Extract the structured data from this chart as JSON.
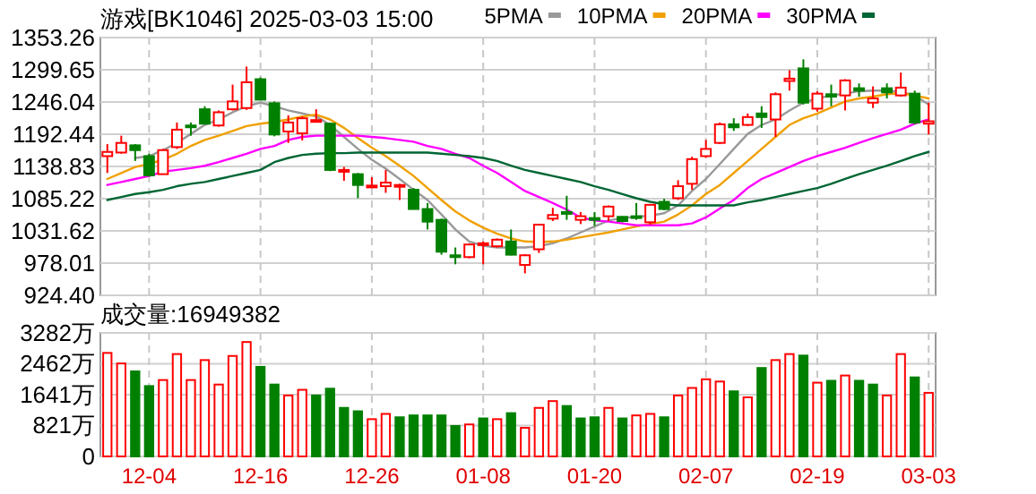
{
  "chart_data": [
    {
      "type": "candlestick",
      "title": "游戏[BK1046] 2025-03-03 15:00",
      "tick_labels": "y",
      "grid": true,
      "legend": "top right",
      "categories": [
        null,
        null,
        null,
        null,
        null,
        null,
        null,
        null,
        null,
        null,
        null,
        null,
        null,
        null,
        null,
        null,
        null,
        null,
        null,
        null,
        null,
        null,
        null,
        null,
        null,
        null,
        null,
        null,
        null,
        null,
        null,
        null,
        null,
        null,
        null,
        null,
        null,
        null,
        null,
        null,
        null,
        null,
        null,
        null,
        null,
        null,
        null,
        null,
        null,
        null,
        null,
        null,
        null,
        null,
        null,
        null,
        null,
        null,
        null,
        null
      ],
      "ylim": [
        924.4,
        1353.26
      ],
      "yticks": [
        {
          "value": 924.4,
          "label": "924.40"
        },
        978.01,
        1031.62,
        1085.22,
        1138.83,
        1192.44,
        1246.04,
        1299.65,
        1353.26
      ],
      "ohlc": [
        [
          1156,
          1176,
          1128,
          1163
        ],
        [
          1162,
          1190,
          1160,
          1178
        ],
        [
          1174,
          1176,
          1148,
          1166
        ],
        [
          1156,
          1160,
          1122,
          1124
        ],
        [
          1126,
          1168,
          1126,
          1166
        ],
        [
          1171,
          1212,
          1168,
          1200
        ],
        [
          1207,
          1212,
          1190,
          1205
        ],
        [
          1234,
          1239,
          1209,
          1210
        ],
        [
          1207,
          1232,
          1205,
          1229
        ],
        [
          1234,
          1275,
          1232,
          1247
        ],
        [
          1236,
          1305,
          1233,
          1279
        ],
        [
          1284,
          1287,
          1249,
          1250
        ],
        [
          1244,
          1247,
          1189,
          1192
        ],
        [
          1197,
          1224,
          1178,
          1212
        ],
        [
          1194,
          1222,
          1182,
          1219
        ],
        [
          1214,
          1234,
          1212,
          1216
        ],
        [
          1210,
          1212,
          1131,
          1133
        ],
        [
          1131,
          1138,
          1115,
          1133
        ],
        [
          1126,
          1128,
          1086,
          1108
        ],
        [
          1106,
          1121,
          1103,
          1107
        ],
        [
          1106,
          1133,
          1095,
          1112
        ],
        [
          1106,
          1110,
          1083,
          1108
        ],
        [
          1100,
          1103,
          1068,
          1068
        ],
        [
          1068,
          1078,
          1034,
          1047
        ],
        [
          1050,
          1052,
          992,
          997
        ],
        [
          991,
          1004,
          976,
          989
        ],
        [
          988,
          1011,
          986,
          1009
        ],
        [
          1009,
          1014,
          976,
          1011
        ],
        [
          1006,
          1019,
          1004,
          1017
        ],
        [
          1014,
          1034,
          991,
          992
        ],
        [
          975,
          993,
          961,
          991
        ],
        [
          1001,
          1042,
          995,
          1042
        ],
        [
          1052,
          1070,
          1048,
          1058
        ],
        [
          1063,
          1090,
          1050,
          1060
        ],
        [
          1050,
          1063,
          1043,
          1056
        ],
        [
          1053,
          1063,
          1040,
          1050
        ],
        [
          1056,
          1074,
          1048,
          1072
        ],
        [
          1055,
          1056,
          1046,
          1048
        ],
        [
          1056,
          1078,
          1050,
          1053
        ],
        [
          1046,
          1075,
          1042,
          1075
        ],
        [
          1080,
          1085,
          1066,
          1068
        ],
        [
          1086,
          1116,
          1083,
          1106
        ],
        [
          1110,
          1155,
          1100,
          1151
        ],
        [
          1156,
          1183,
          1153,
          1168
        ],
        [
          1178,
          1212,
          1176,
          1209
        ],
        [
          1209,
          1219,
          1198,
          1204
        ],
        [
          1208,
          1227,
          1206,
          1221
        ],
        [
          1227,
          1239,
          1203,
          1221
        ],
        [
          1217,
          1262,
          1188,
          1259
        ],
        [
          1281,
          1299,
          1265,
          1285
        ],
        [
          1302,
          1317,
          1242,
          1245
        ],
        [
          1235,
          1264,
          1230,
          1260
        ],
        [
          1259,
          1275,
          1239,
          1255
        ],
        [
          1257,
          1284,
          1232,
          1282
        ],
        [
          1269,
          1277,
          1255,
          1265
        ],
        [
          1245,
          1272,
          1236,
          1252
        ],
        [
          1269,
          1277,
          1252,
          1262
        ],
        [
          1257,
          1295,
          1255,
          1270
        ],
        [
          1260,
          1265,
          1209,
          1212
        ],
        [
          1210,
          1245,
          1192,
          1214
        ]
      ],
      "colors": [
        "#ff0000",
        "#ff0000",
        "#008000",
        "#008000",
        "#ff0000",
        "#ff0000",
        "#008000",
        "#008000",
        "#ff0000",
        "#ff0000",
        "#ff0000",
        "#008000",
        "#008000",
        "#ff0000",
        "#ff0000",
        "#ff0000",
        "#008000",
        "#ff0000",
        "#008000",
        "#ff0000",
        "#ff0000",
        "#ff0000",
        "#008000",
        "#008000",
        "#008000",
        "#008000",
        "#ff0000",
        "#ff0000",
        "#ff0000",
        "#008000",
        "#ff0000",
        "#ff0000",
        "#ff0000",
        "#008000",
        "#ff0000",
        "#008000",
        "#ff0000",
        "#008000",
        "#008000",
        "#ff0000",
        "#008000",
        "#ff0000",
        "#ff0000",
        "#ff0000",
        "#ff0000",
        "#008000",
        "#ff0000",
        "#008000",
        "#ff0000",
        "#ff0000",
        "#008000",
        "#ff0000",
        "#008000",
        "#ff0000",
        "#008000",
        "#ff0000",
        "#008000",
        "#ff0000",
        "#008000",
        "#ff0000"
      ],
      "series": [
        {
          "type": "line",
          "name": "5PMA",
          "color": "#999999",
          "values": [
            null,
            null,
            1153,
            1156,
            1166,
            1178,
            1193,
            1208,
            1217,
            1229,
            1239,
            1245,
            1239,
            1232,
            1227,
            1222,
            1208,
            1188,
            1168,
            1150,
            1135,
            1118,
            1100,
            1083,
            1059,
            1034,
            1014,
            1007,
            1004,
            1004,
            1004,
            1006,
            1011,
            1019,
            1029,
            1039,
            1049,
            1053,
            1055,
            1057,
            1061,
            1074,
            1098,
            1118,
            1143,
            1168,
            1193,
            1208,
            1217,
            1232,
            1245,
            1252,
            1257,
            1260,
            1264,
            1265,
            1265,
            1263,
            1257,
            1242
          ]
        },
        {
          "type": "line",
          "name": "10PMA",
          "color": "#f0a000",
          "values": [
            1118,
            1128,
            1138,
            1143,
            1150,
            1160,
            1173,
            1183,
            1190,
            1198,
            1206,
            1210,
            1213,
            1217,
            1222,
            1225,
            1217,
            1203,
            1186,
            1170,
            1156,
            1140,
            1123,
            1103,
            1083,
            1064,
            1049,
            1037,
            1027,
            1019,
            1014,
            1013,
            1014,
            1017,
            1021,
            1025,
            1029,
            1034,
            1039,
            1043,
            1047,
            1059,
            1074,
            1093,
            1108,
            1128,
            1148,
            1168,
            1188,
            1208,
            1219,
            1227,
            1237,
            1247,
            1252,
            1255,
            1259,
            1261,
            1257,
            1252
          ]
        },
        {
          "type": "line",
          "name": "20PMA",
          "color": "#ff00ff",
          "values": [
            1108,
            1113,
            1118,
            1123,
            1130,
            1133,
            1136,
            1140,
            1146,
            1153,
            1160,
            1168,
            1173,
            1183,
            1188,
            1190,
            1190,
            1190,
            1190,
            1188,
            1186,
            1183,
            1180,
            1173,
            1168,
            1160,
            1153,
            1140,
            1128,
            1113,
            1098,
            1088,
            1078,
            1067,
            1054,
            1049,
            1047,
            1044,
            1041,
            1041,
            1041,
            1041,
            1044,
            1054,
            1069,
            1083,
            1103,
            1118,
            1128,
            1138,
            1148,
            1156,
            1163,
            1170,
            1178,
            1186,
            1193,
            1200,
            1210,
            1217
          ]
        },
        {
          "type": "line",
          "name": "30PMA",
          "color": "#006633",
          "values": [
            1083,
            1088,
            1093,
            1096,
            1100,
            1106,
            1110,
            1113,
            1118,
            1123,
            1128,
            1133,
            1146,
            1153,
            1158,
            1160,
            1161,
            1161,
            1162,
            1162,
            1162,
            1162,
            1162,
            1162,
            1160,
            1158,
            1156,
            1153,
            1148,
            1140,
            1133,
            1128,
            1123,
            1118,
            1113,
            1106,
            1100,
            1093,
            1086,
            1080,
            1076,
            1074,
            1074,
            1074,
            1074,
            1074,
            1079,
            1083,
            1088,
            1093,
            1098,
            1103,
            1110,
            1118,
            1126,
            1133,
            1140,
            1148,
            1156,
            1163
          ]
        }
      ]
    },
    {
      "type": "bar",
      "title": "成交量:16949382",
      "grid": true,
      "categories": [
        null,
        null,
        null,
        "12-04",
        null,
        null,
        null,
        null,
        null,
        null,
        null,
        "12-16",
        null,
        null,
        null,
        null,
        null,
        null,
        null,
        "12-26",
        null,
        null,
        null,
        null,
        null,
        null,
        null,
        "01-08",
        null,
        null,
        null,
        null,
        null,
        null,
        null,
        "01-20",
        null,
        null,
        null,
        null,
        null,
        null,
        null,
        "02-07",
        null,
        null,
        null,
        null,
        null,
        null,
        null,
        "02-19",
        null,
        null,
        null,
        null,
        null,
        null,
        null,
        "03-03"
      ],
      "ylim": [
        0,
        3282
      ],
      "yticks": [
        0,
        {
          "value": 821,
          "label": "821万"
        },
        {
          "value": 1641,
          "label": "1641万"
        },
        {
          "value": 2462,
          "label": "2462万"
        },
        {
          "value": 3282,
          "label": "3282万"
        }
      ],
      "values": [
        2750,
        2470,
        2260,
        1870,
        2030,
        2720,
        2030,
        2560,
        1910,
        2670,
        3040,
        2380,
        1910,
        1620,
        1770,
        1620,
        1800,
        1290,
        1200,
        990,
        1130,
        1040,
        1090,
        1090,
        1090,
        810,
        850,
        1010,
        990,
        1150,
        760,
        1290,
        1470,
        1340,
        1010,
        1040,
        1290,
        1010,
        1090,
        1130,
        1040,
        1620,
        1820,
        2050,
        1990,
        1730,
        1570,
        2350,
        2560,
        2720,
        2680,
        1960,
        2010,
        2150,
        2010,
        1910,
        1620,
        2720,
        2100,
        1690
      ],
      "colors": [
        "#ff0000",
        "#ff0000",
        "#008000",
        "#008000",
        "#ff0000",
        "#ff0000",
        "#ff0000",
        "#ff0000",
        "#ff0000",
        "#ff0000",
        "#ff0000",
        "#008000",
        "#008000",
        "#ff0000",
        "#ff0000",
        "#008000",
        "#008000",
        "#008000",
        "#008000",
        "#ff0000",
        "#ff0000",
        "#008000",
        "#008000",
        "#008000",
        "#008000",
        "#008000",
        "#ff0000",
        "#008000",
        "#ff0000",
        "#008000",
        "#ff0000",
        "#ff0000",
        "#ff0000",
        "#008000",
        "#008000",
        "#008000",
        "#ff0000",
        "#008000",
        "#ff0000",
        "#ff0000",
        "#008000",
        "#ff0000",
        "#ff0000",
        "#ff0000",
        "#ff0000",
        "#008000",
        "#ff0000",
        "#008000",
        "#ff0000",
        "#ff0000",
        "#008000",
        "#ff0000",
        "#008000",
        "#ff0000",
        "#008000",
        "#008000",
        "#ff0000",
        "#ff0000",
        "#008000",
        "#ff0000"
      ]
    }
  ]
}
